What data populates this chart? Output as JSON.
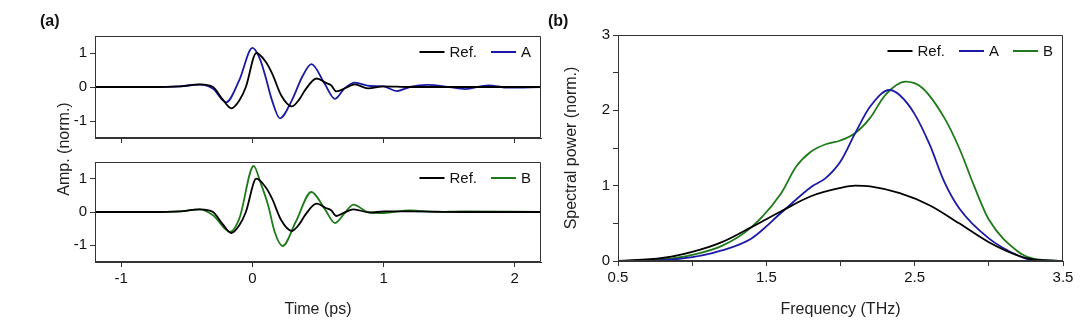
{
  "chart_data": [
    {
      "type": "line",
      "title": "(a)",
      "ylabel": "Amp. (norm.)",
      "xlim": [
        -1.2,
        2.2
      ],
      "xticks": [
        -1,
        0,
        1,
        2
      ],
      "ylim": [
        -1.5,
        1.5
      ],
      "yticks": [
        -1,
        0,
        1
      ],
      "tick_labels": "y",
      "grid": false,
      "legend": "top right",
      "series": [
        {
          "name": "Ref.",
          "color": "#000000",
          "x": [
            -1.2,
            -0.8,
            -0.55,
            -0.4,
            -0.3,
            -0.23,
            -0.16,
            -0.1,
            -0.05,
            0.03,
            0.1,
            0.15,
            0.22,
            0.3,
            0.36,
            0.4,
            0.49,
            0.56,
            0.6,
            0.64,
            0.71,
            0.78,
            0.88,
            1.0,
            1.2,
            1.6,
            2.2
          ],
          "values": [
            0,
            0,
            0.02,
            0.08,
            0,
            -0.35,
            -0.63,
            -0.4,
            0,
            1.0,
            0.75,
            0.4,
            -0.25,
            -0.57,
            -0.35,
            -0.1,
            0.25,
            0.12,
            0.05,
            -0.13,
            -0.03,
            0.08,
            -0.04,
            0.02,
            0,
            0,
            0
          ]
        },
        {
          "name": "A",
          "color": "#1a1aa6",
          "x": [
            -1.2,
            -0.8,
            -0.55,
            -0.4,
            -0.3,
            -0.2,
            -0.1,
            0.0,
            0.06,
            0.1,
            0.15,
            0.21,
            0.3,
            0.38,
            0.45,
            0.55,
            0.63,
            0.7,
            0.78,
            0.9,
            1.0,
            1.1,
            1.2,
            1.33,
            1.5,
            1.62,
            1.8,
            1.95,
            2.2
          ],
          "values": [
            0,
            0,
            0.02,
            0.07,
            -0.05,
            -0.45,
            0.2,
            1.15,
            0.8,
            0.3,
            -0.4,
            -0.92,
            -0.4,
            0.3,
            0.67,
            0.1,
            -0.35,
            -0.05,
            0.13,
            0.03,
            0.02,
            -0.12,
            0,
            0.06,
            0,
            -0.06,
            0.05,
            -0.02,
            0
          ]
        }
      ]
    },
    {
      "type": "line",
      "xlabel": "Time (ps)",
      "xlim": [
        -1.2,
        2.2
      ],
      "xticks": [
        -1,
        0,
        1,
        2
      ],
      "ylim": [
        -1.5,
        1.5
      ],
      "yticks": [
        -1,
        0,
        1
      ],
      "grid": false,
      "legend": "top right",
      "series": [
        {
          "name": "Ref.",
          "color": "#000000",
          "x": [
            -1.2,
            -0.8,
            -0.55,
            -0.4,
            -0.3,
            -0.23,
            -0.16,
            -0.1,
            -0.05,
            0.03,
            0.1,
            0.15,
            0.22,
            0.3,
            0.36,
            0.4,
            0.49,
            0.56,
            0.6,
            0.64,
            0.7,
            0.77,
            0.9,
            1.0,
            1.2,
            1.6,
            2.2
          ],
          "values": [
            0,
            0,
            0.02,
            0.08,
            0,
            -0.35,
            -0.63,
            -0.4,
            0,
            1.0,
            0.75,
            0.4,
            -0.25,
            -0.57,
            -0.35,
            -0.1,
            0.25,
            0.12,
            0.05,
            -0.12,
            -0.02,
            0.08,
            -0.02,
            0.02,
            0.02,
            0,
            0
          ]
        },
        {
          "name": "B",
          "color": "#1f7a1a",
          "x": [
            -1.2,
            -0.8,
            -0.55,
            -0.4,
            -0.3,
            -0.17,
            -0.1,
            0.01,
            0.06,
            0.12,
            0.17,
            0.23,
            0.33,
            0.45,
            0.55,
            0.63,
            0.7,
            0.77,
            0.88,
            1.0,
            1.2,
            1.4,
            1.6,
            2.2
          ],
          "values": [
            0,
            0,
            0.02,
            0.08,
            -0.1,
            -0.6,
            -0.2,
            1.38,
            0.9,
            0.2,
            -0.6,
            -1.02,
            -0.3,
            0.6,
            0.1,
            -0.33,
            -0.05,
            0.22,
            0,
            -0.03,
            0.05,
            0,
            0.02,
            0
          ]
        }
      ]
    },
    {
      "type": "line",
      "title": "(b)",
      "xlabel": "Frequency (THz)",
      "ylabel": "Spectral power (norm.)",
      "xlim": [
        0.5,
        3.5
      ],
      "xticks": [
        0.5,
        {
          "value": 1,
          "label": null
        },
        1.5,
        {
          "value": 2,
          "label": null
        },
        2.5,
        {
          "value": 3,
          "label": null
        },
        3.5
      ],
      "ylim": [
        0,
        3
      ],
      "yticks": [
        0,
        {
          "value": 0.5,
          "label": null
        },
        1,
        {
          "value": 1.5,
          "label": null
        },
        2,
        {
          "value": 2.5,
          "label": null
        },
        3
      ],
      "grid": false,
      "legend": "top right",
      "series": [
        {
          "name": "Ref.",
          "color": "#000000",
          "x": [
            0.5,
            0.8,
            1.0,
            1.2,
            1.4,
            1.6,
            1.8,
            2.0,
            2.1,
            2.2,
            2.4,
            2.6,
            2.8,
            3.0,
            3.2,
            3.3,
            3.5
          ],
          "values": [
            0,
            0.04,
            0.12,
            0.25,
            0.45,
            0.66,
            0.86,
            0.97,
            1.0,
            0.99,
            0.9,
            0.74,
            0.5,
            0.25,
            0.07,
            0.02,
            0
          ]
        },
        {
          "name": "A",
          "color": "#1a1aa6",
          "x": [
            0.5,
            0.8,
            1.0,
            1.2,
            1.4,
            1.6,
            1.8,
            1.9,
            2.0,
            2.1,
            2.2,
            2.33,
            2.4,
            2.5,
            2.6,
            2.7,
            2.8,
            3.0,
            3.2,
            3.3,
            3.5
          ],
          "values": [
            0,
            0.01,
            0.05,
            0.14,
            0.3,
            0.64,
            0.98,
            1.1,
            1.32,
            1.7,
            2.05,
            2.27,
            2.2,
            1.95,
            1.55,
            1.05,
            0.7,
            0.3,
            0.07,
            0.01,
            0
          ]
        },
        {
          "name": "B",
          "color": "#1f7a1a",
          "x": [
            0.5,
            0.8,
            1.0,
            1.2,
            1.4,
            1.6,
            1.7,
            1.8,
            1.9,
            2.0,
            2.1,
            2.2,
            2.3,
            2.44,
            2.55,
            2.7,
            2.8,
            2.9,
            3.0,
            3.2,
            3.3,
            3.5
          ],
          "values": [
            0,
            0.02,
            0.08,
            0.2,
            0.45,
            0.9,
            1.25,
            1.45,
            1.55,
            1.6,
            1.7,
            1.9,
            2.2,
            2.38,
            2.3,
            1.9,
            1.5,
            1.0,
            0.55,
            0.12,
            0.03,
            0
          ]
        }
      ]
    }
  ]
}
